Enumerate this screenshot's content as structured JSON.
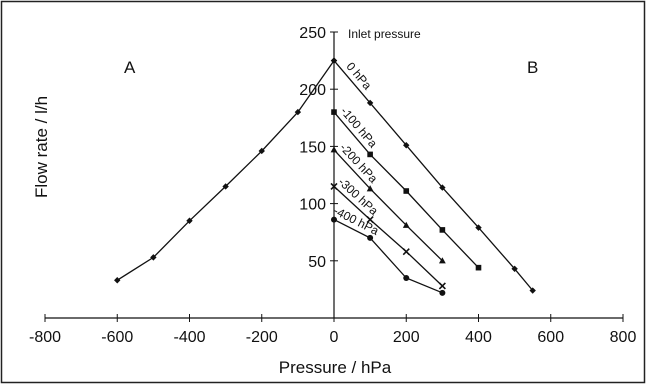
{
  "chart_data": {
    "type": "line",
    "xlabel": "Pressure / hPa",
    "ylabel": "Flow rate / l/h",
    "xlim": [
      -800,
      800
    ],
    "ylim": [
      0,
      250
    ],
    "x_ticks": [
      "-800",
      "-600",
      "-400",
      "-200",
      "0",
      "200",
      "400",
      "600",
      "800"
    ],
    "y_ticks": [
      "50",
      "100",
      "150",
      "200",
      "250"
    ],
    "annotation": "Inlet pressure",
    "regions": [
      "A",
      "B"
    ],
    "grid": false,
    "series": [
      {
        "name": "A",
        "marker": "diamond",
        "points": [
          [
            -600,
            33
          ],
          [
            -500,
            53
          ],
          [
            -400,
            85
          ],
          [
            -300,
            115
          ],
          [
            -200,
            146
          ],
          [
            -100,
            180
          ],
          [
            0,
            225
          ]
        ]
      },
      {
        "name": "0 hPa",
        "marker": "diamond",
        "points": [
          [
            0,
            225
          ],
          [
            100,
            188
          ],
          [
            200,
            151
          ],
          [
            300,
            114
          ],
          [
            400,
            79
          ],
          [
            500,
            43
          ],
          [
            550,
            24
          ]
        ]
      },
      {
        "name": "-100 hPa",
        "marker": "square",
        "points": [
          [
            0,
            180
          ],
          [
            100,
            143
          ],
          [
            200,
            111
          ],
          [
            300,
            77
          ],
          [
            400,
            44
          ]
        ]
      },
      {
        "name": "-200 hPa",
        "marker": "triangle",
        "points": [
          [
            0,
            147
          ],
          [
            100,
            113
          ],
          [
            200,
            81
          ],
          [
            300,
            50
          ]
        ]
      },
      {
        "name": "-300 hPa",
        "marker": "cross",
        "points": [
          [
            0,
            115
          ],
          [
            100,
            86
          ],
          [
            200,
            58
          ],
          [
            300,
            28
          ]
        ]
      },
      {
        "name": "-400 hPa",
        "marker": "circle",
        "points": [
          [
            0,
            86
          ],
          [
            100,
            70
          ],
          [
            200,
            35
          ],
          [
            300,
            22
          ]
        ]
      }
    ]
  }
}
